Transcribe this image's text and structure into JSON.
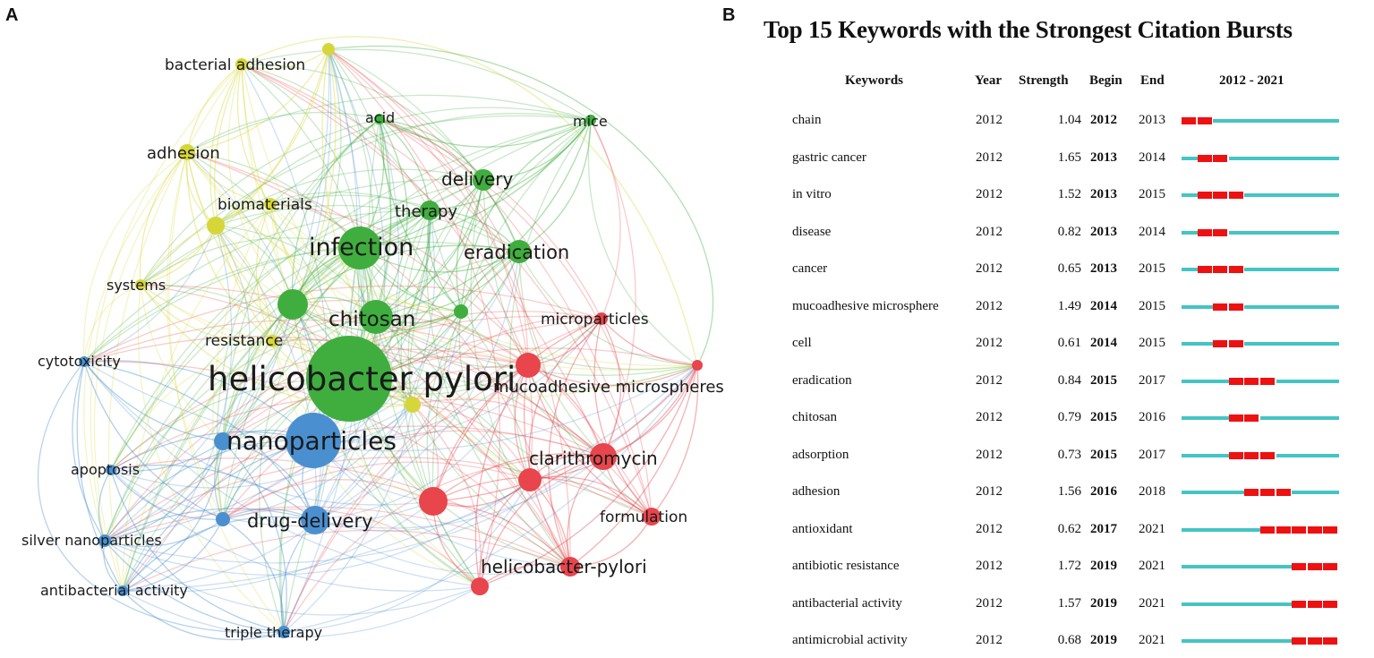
{
  "panel_a": {
    "letter": "A",
    "colors": {
      "green": "#3fae3f",
      "blue": "#4a90d0",
      "red": "#e8454c",
      "yellow": "#d6d63a"
    },
    "nodes": [
      {
        "label": "helicobacter pylori",
        "cluster": "green",
        "weight": 10
      },
      {
        "label": "nanoparticles",
        "cluster": "blue",
        "weight": 7
      },
      {
        "label": "infection",
        "cluster": "green",
        "weight": 6
      },
      {
        "label": "chitosan",
        "cluster": "green",
        "weight": 5
      },
      {
        "label": "drug-delivery",
        "cluster": "blue",
        "weight": 4
      },
      {
        "label": "eradication",
        "cluster": "green",
        "weight": 4
      },
      {
        "label": "delivery",
        "cluster": "green",
        "weight": 3
      },
      {
        "label": "therapy",
        "cluster": "green",
        "weight": 3
      },
      {
        "label": "clarithromycin",
        "cluster": "red",
        "weight": 4
      },
      {
        "label": "mucoadhesive microspheres",
        "cluster": "red",
        "weight": 3
      },
      {
        "label": "microparticles",
        "cluster": "red",
        "weight": 2
      },
      {
        "label": "helicobacter-pylori",
        "cluster": "red",
        "weight": 3
      },
      {
        "label": "formulation",
        "cluster": "red",
        "weight": 3
      },
      {
        "label": "acid",
        "cluster": "green",
        "weight": 2
      },
      {
        "label": "mice",
        "cluster": "green",
        "weight": 2
      },
      {
        "label": "bacterial adhesion",
        "cluster": "yellow",
        "weight": 2
      },
      {
        "label": "adhesion",
        "cluster": "yellow",
        "weight": 2
      },
      {
        "label": "biomaterials",
        "cluster": "yellow",
        "weight": 2
      },
      {
        "label": "systems",
        "cluster": "yellow",
        "weight": 2
      },
      {
        "label": "resistance",
        "cluster": "yellow",
        "weight": 2
      },
      {
        "label": "cytotoxicity",
        "cluster": "blue",
        "weight": 2
      },
      {
        "label": "apoptosis",
        "cluster": "blue",
        "weight": 2
      },
      {
        "label": "silver nanoparticles",
        "cluster": "blue",
        "weight": 2
      },
      {
        "label": "antibacterial activity",
        "cluster": "blue",
        "weight": 2
      },
      {
        "label": "triple therapy",
        "cluster": "blue",
        "weight": 2
      }
    ]
  },
  "panel_b": {
    "letter": "B",
    "title": "Top 15 Keywords with the Strongest Citation Bursts",
    "headers": {
      "keywords": "Keywords",
      "year": "Year",
      "strength": "Strength",
      "begin": "Begin",
      "end": "End",
      "range": "2012 - 2021"
    },
    "range_start": 2012,
    "range_end": 2021,
    "colors": {
      "burst": "#ee1111",
      "base": "#45c4c4"
    },
    "rows": [
      {
        "keyword": "chain",
        "year": "2012",
        "strength": "1.04",
        "begin": "2012",
        "end": "2013"
      },
      {
        "keyword": "gastric cancer",
        "year": "2012",
        "strength": "1.65",
        "begin": "2013",
        "end": "2014"
      },
      {
        "keyword": "in vitro",
        "year": "2012",
        "strength": "1.52",
        "begin": "2013",
        "end": "2015"
      },
      {
        "keyword": "disease",
        "year": "2012",
        "strength": "0.82",
        "begin": "2013",
        "end": "2014"
      },
      {
        "keyword": "cancer",
        "year": "2012",
        "strength": "0.65",
        "begin": "2013",
        "end": "2015"
      },
      {
        "keyword": "mucoadhesive microsphere",
        "year": "2012",
        "strength": "1.49",
        "begin": "2014",
        "end": "2015"
      },
      {
        "keyword": "cell",
        "year": "2012",
        "strength": "0.61",
        "begin": "2014",
        "end": "2015"
      },
      {
        "keyword": "eradication",
        "year": "2012",
        "strength": "0.84",
        "begin": "2015",
        "end": "2017"
      },
      {
        "keyword": "chitosan",
        "year": "2012",
        "strength": "0.79",
        "begin": "2015",
        "end": "2016"
      },
      {
        "keyword": "adsorption",
        "year": "2012",
        "strength": "0.73",
        "begin": "2015",
        "end": "2017"
      },
      {
        "keyword": "adhesion",
        "year": "2012",
        "strength": "1.56",
        "begin": "2016",
        "end": "2018"
      },
      {
        "keyword": "antioxidant",
        "year": "2012",
        "strength": "0.62",
        "begin": "2017",
        "end": "2021"
      },
      {
        "keyword": "antibiotic resistance",
        "year": "2012",
        "strength": "1.72",
        "begin": "2019",
        "end": "2021"
      },
      {
        "keyword": "antibacterial activity",
        "year": "2012",
        "strength": "1.57",
        "begin": "2019",
        "end": "2021"
      },
      {
        "keyword": "antimicrobial activity",
        "year": "2012",
        "strength": "0.68",
        "begin": "2019",
        "end": "2021"
      }
    ]
  }
}
